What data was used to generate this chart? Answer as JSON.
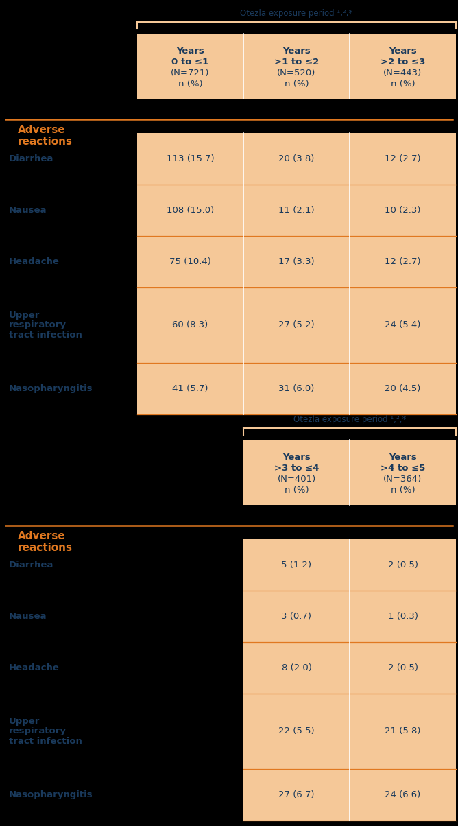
{
  "bg_color": "#000000",
  "cell_bg": "#f5c898",
  "orange_color": "#e07820",
  "dark_blue": "#1a3a5c",
  "white": "#ffffff",
  "fig_w": 6.68,
  "fig_h": 12.04,
  "dpi": 100,
  "table1": {
    "title": "Otezla exposure period ¹,²,*",
    "cols": [
      [
        "Years",
        "0 to ≤1",
        "(N=721)",
        "n (%)"
      ],
      [
        "Years",
        ">1 to ≤2",
        "(N=520)",
        "n (%)"
      ],
      [
        "Years",
        ">2 to ≤3",
        "(N=443)",
        "n (%)"
      ]
    ],
    "rows": [
      {
        "label": [
          "Diarrhea"
        ],
        "values": [
          "113 (15.7)",
          "20 (3.8)",
          "12 (2.7)"
        ]
      },
      {
        "label": [
          "Nausea"
        ],
        "values": [
          "108 (15.0)",
          "11 (2.1)",
          "10 (2.3)"
        ]
      },
      {
        "label": [
          "Headache"
        ],
        "values": [
          "75 (10.4)",
          "17 (3.3)",
          "12 (2.7)"
        ]
      },
      {
        "label": [
          "Upper",
          "respiratory",
          "tract infection"
        ],
        "values": [
          "60 (8.3)",
          "27 (5.2)",
          "24 (5.4)"
        ]
      },
      {
        "label": [
          "Nasopharyngitis"
        ],
        "values": [
          "41 (5.7)",
          "31 (6.0)",
          "20 (4.5)"
        ]
      }
    ],
    "adverse_label": [
      "Adverse",
      "reactions"
    ]
  },
  "table2": {
    "title": "Otezla exposure period ¹,²,*",
    "cols": [
      [
        "Years",
        ">3 to ≤4",
        "(N=401)",
        "n (%)"
      ],
      [
        "Years",
        ">4 to ≤5",
        "(N=364)",
        "n (%)"
      ]
    ],
    "rows": [
      {
        "label": [
          "Diarrhea"
        ],
        "values": [
          "5 (1.2)",
          "2 (0.5)"
        ]
      },
      {
        "label": [
          "Nausea"
        ],
        "values": [
          "3 (0.7)",
          "1 (0.3)"
        ]
      },
      {
        "label": [
          "Headache"
        ],
        "values": [
          "8 (2.0)",
          "2 (0.5)"
        ]
      },
      {
        "label": [
          "Upper",
          "respiratory",
          "tract infection"
        ],
        "values": [
          "22 (5.5)",
          "21 (5.8)"
        ]
      },
      {
        "label": [
          "Nasopharyngitis"
        ],
        "values": [
          "27 (6.7)",
          "24 (6.6)"
        ]
      }
    ],
    "adverse_label": [
      "Adverse",
      "reactions"
    ]
  }
}
